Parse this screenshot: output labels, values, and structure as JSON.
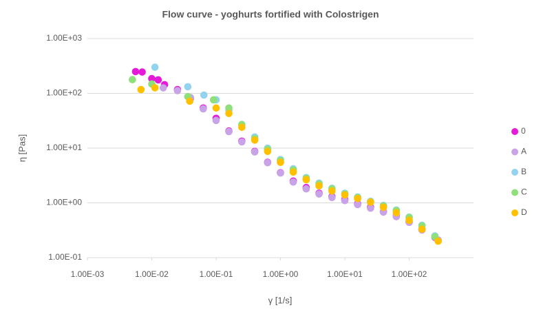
{
  "chart_data": {
    "type": "scatter",
    "title": "Flow curve - yoghurts fortified with Colostrigen",
    "x_label": "γ [1/s]",
    "y_label": "η [Pas]",
    "log_x": true,
    "log_y": true,
    "ygrid": true,
    "xlim": [
      0.001,
      1000
    ],
    "ylim": [
      0.1,
      1000
    ],
    "xticks": [
      {
        "value": 0.001,
        "label": "1.00E-03"
      },
      {
        "value": 0.01,
        "label": "1.00E-02"
      },
      {
        "value": 0.1,
        "label": "1.00E-01"
      },
      {
        "value": 1,
        "label": "1.00E+00"
      },
      {
        "value": 10,
        "label": "1.00E+01"
      },
      {
        "value": 100,
        "label": "1.00E+02"
      }
    ],
    "yticks": [
      {
        "value": 0.1,
        "label": "1.00E-01"
      },
      {
        "value": 1,
        "label": "1.00E+00"
      },
      {
        "value": 10,
        "label": "1.00E+01"
      },
      {
        "value": 100,
        "label": "1.00E+02"
      },
      {
        "value": 1000,
        "label": "1.00E+03"
      }
    ],
    "legend": "right",
    "series": [
      {
        "name": "0",
        "color": "#e619d9",
        "x": [
          0.0056,
          0.0071,
          0.01,
          0.0126,
          0.0158,
          0.0251,
          0.0398,
          0.0631,
          0.1,
          0.158,
          0.251,
          0.398,
          0.631,
          1,
          1.58,
          2.51,
          3.98,
          6.31,
          10,
          15.8,
          25.1,
          39.8,
          63.1,
          100,
          158,
          251
        ],
        "values": [
          250,
          245,
          186,
          176,
          144,
          117,
          81,
          54,
          35,
          20.5,
          13.4,
          8.7,
          5.5,
          3.55,
          2.5,
          1.9,
          1.5,
          1.3,
          1.15,
          0.96,
          0.83,
          0.69,
          0.57,
          0.45,
          0.33,
          0.235
        ]
      },
      {
        "name": "A",
        "color": "#c9a3e8",
        "x": [
          0.0151,
          0.0251,
          0.0398,
          0.0631,
          0.1,
          0.158,
          0.251,
          0.398,
          0.631,
          1,
          1.58,
          2.51,
          3.98,
          6.31,
          10,
          15.8,
          25.1,
          39.8,
          63.1,
          100,
          158,
          282
        ],
        "values": [
          126,
          112,
          84,
          52,
          32,
          20,
          13,
          8.5,
          5.4,
          3.5,
          2.4,
          1.8,
          1.45,
          1.25,
          1.1,
          0.93,
          0.8,
          0.68,
          0.56,
          0.44,
          0.32,
          0.21
        ]
      },
      {
        "name": "B",
        "color": "#93d3f0",
        "x": [
          0.0112,
          0.0363,
          0.0646,
          0.1,
          0.158,
          0.251,
          0.398,
          0.631,
          1,
          1.58,
          2.51,
          3.98,
          6.31,
          10,
          15.8,
          25.1,
          39.8,
          63.1,
          100,
          158,
          251
        ],
        "values": [
          300,
          132,
          93,
          76,
          49,
          26,
          16,
          10,
          6.2,
          4.2,
          2.9,
          2.3,
          1.85,
          1.5,
          1.28,
          1.07,
          0.9,
          0.74,
          0.55,
          0.39,
          0.25
        ]
      },
      {
        "name": "C",
        "color": "#8fe07a",
        "x": [
          0.005,
          0.01,
          0.0363,
          0.0912,
          0.158,
          0.251,
          0.398,
          0.631,
          1,
          1.58,
          2.51,
          3.98,
          6.31,
          10,
          15.8,
          25.1,
          39.8,
          63.1,
          100,
          158,
          251
        ],
        "values": [
          178,
          148,
          87,
          76,
          54,
          27,
          15,
          9.5,
          5.9,
          4,
          2.8,
          2.2,
          1.8,
          1.45,
          1.25,
          1.04,
          0.88,
          0.72,
          0.54,
          0.38,
          0.24
        ]
      },
      {
        "name": "D",
        "color": "#ffc000",
        "x": [
          0.0068,
          0.0112,
          0.0389,
          0.1,
          0.158,
          0.251,
          0.398,
          0.631,
          1,
          1.58,
          2.51,
          3.98,
          6.31,
          10,
          15.8,
          25.1,
          39.8,
          63.1,
          100,
          158,
          282
        ],
        "values": [
          117,
          126,
          72,
          54,
          43,
          24,
          14,
          8.7,
          5.5,
          3.65,
          2.65,
          2.05,
          1.65,
          1.4,
          1.2,
          1.03,
          0.83,
          0.66,
          0.48,
          0.33,
          0.2
        ]
      }
    ]
  }
}
